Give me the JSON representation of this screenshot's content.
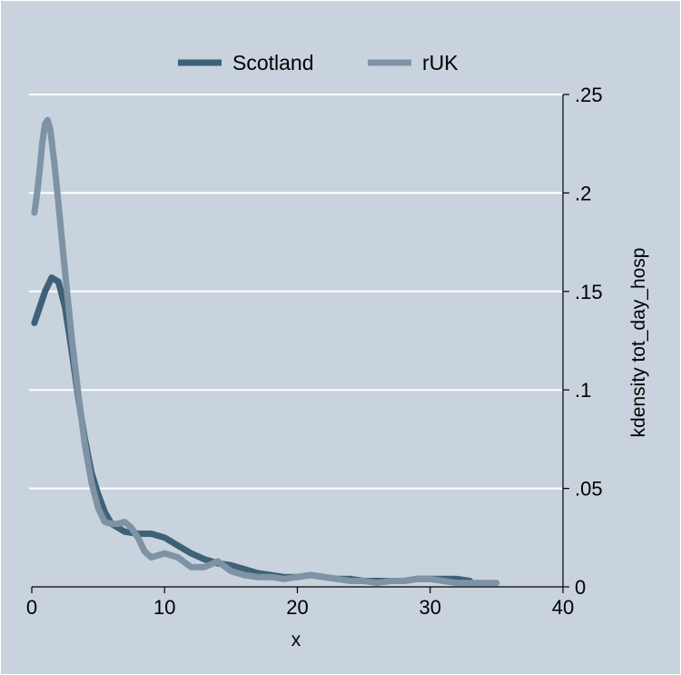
{
  "chart_data": {
    "type": "line",
    "title": "",
    "xlabel": "x",
    "ylabel": "kdensity tot_day_hosp",
    "xlim": [
      0,
      40
    ],
    "ylim": [
      0,
      0.25
    ],
    "y_axis_side": "right",
    "grid": true,
    "legend_position": "top-center",
    "x_ticks": [
      {
        "value": 0,
        "label": "0"
      },
      {
        "value": 10,
        "label": "10"
      },
      {
        "value": 20,
        "label": "20"
      },
      {
        "value": 30,
        "label": "30"
      },
      {
        "value": 40,
        "label": "40"
      }
    ],
    "y_ticks": [
      {
        "value": 0,
        "label": "0"
      },
      {
        "value": 0.05,
        "label": ".05"
      },
      {
        "value": 0.1,
        "label": ".1"
      },
      {
        "value": 0.15,
        "label": ".15"
      },
      {
        "value": 0.2,
        "label": ".2"
      },
      {
        "value": 0.25,
        "label": ".25"
      }
    ],
    "colors": {
      "outer_background": "#C9D3DD",
      "plot_background": "#C9D3DD",
      "grid": "#FFFFFF"
    },
    "series": [
      {
        "name": "Scotland",
        "color": "#3E6177",
        "points": [
          [
            0.2,
            0.134
          ],
          [
            0.5,
            0.14
          ],
          [
            1.0,
            0.15
          ],
          [
            1.5,
            0.157
          ],
          [
            2.0,
            0.155
          ],
          [
            2.5,
            0.142
          ],
          [
            3.0,
            0.12
          ],
          [
            3.5,
            0.096
          ],
          [
            4.0,
            0.075
          ],
          [
            4.5,
            0.058
          ],
          [
            5.0,
            0.047
          ],
          [
            5.5,
            0.038
          ],
          [
            6.0,
            0.032
          ],
          [
            7.0,
            0.028
          ],
          [
            8.0,
            0.027
          ],
          [
            9.0,
            0.027
          ],
          [
            10.0,
            0.025
          ],
          [
            11.0,
            0.021
          ],
          [
            12.0,
            0.017
          ],
          [
            13.0,
            0.014
          ],
          [
            14.0,
            0.012
          ],
          [
            15.0,
            0.011
          ],
          [
            16.0,
            0.009
          ],
          [
            17.0,
            0.007
          ],
          [
            18.0,
            0.006
          ],
          [
            19.0,
            0.005
          ],
          [
            20.0,
            0.005
          ],
          [
            21.0,
            0.006
          ],
          [
            22.0,
            0.005
          ],
          [
            23.0,
            0.004
          ],
          [
            24.0,
            0.004
          ],
          [
            25.0,
            0.003
          ],
          [
            26.0,
            0.003
          ],
          [
            27.0,
            0.003
          ],
          [
            28.0,
            0.003
          ],
          [
            29.0,
            0.004
          ],
          [
            30.0,
            0.004
          ],
          [
            31.0,
            0.004
          ],
          [
            32.0,
            0.004
          ],
          [
            33.0,
            0.003
          ]
        ]
      },
      {
        "name": "rUK",
        "color": "#7F93A6",
        "points": [
          [
            0.2,
            0.19
          ],
          [
            0.4,
            0.2
          ],
          [
            0.6,
            0.212
          ],
          [
            0.8,
            0.226
          ],
          [
            1.0,
            0.235
          ],
          [
            1.2,
            0.237
          ],
          [
            1.4,
            0.232
          ],
          [
            1.7,
            0.215
          ],
          [
            2.0,
            0.195
          ],
          [
            2.5,
            0.16
          ],
          [
            3.0,
            0.127
          ],
          [
            3.5,
            0.098
          ],
          [
            4.0,
            0.072
          ],
          [
            4.5,
            0.053
          ],
          [
            5.0,
            0.04
          ],
          [
            5.5,
            0.033
          ],
          [
            6.0,
            0.032
          ],
          [
            6.5,
            0.032
          ],
          [
            7.0,
            0.033
          ],
          [
            7.5,
            0.03
          ],
          [
            8.0,
            0.025
          ],
          [
            8.5,
            0.018
          ],
          [
            9.0,
            0.015
          ],
          [
            10.0,
            0.017
          ],
          [
            11.0,
            0.015
          ],
          [
            12.0,
            0.01
          ],
          [
            13.0,
            0.01
          ],
          [
            14.0,
            0.013
          ],
          [
            15.0,
            0.008
          ],
          [
            16.0,
            0.006
          ],
          [
            17.0,
            0.005
          ],
          [
            18.0,
            0.005
          ],
          [
            19.0,
            0.004
          ],
          [
            20.0,
            0.005
          ],
          [
            21.0,
            0.006
          ],
          [
            22.0,
            0.005
          ],
          [
            23.0,
            0.004
          ],
          [
            24.0,
            0.003
          ],
          [
            25.0,
            0.003
          ],
          [
            26.0,
            0.002
          ],
          [
            27.0,
            0.003
          ],
          [
            28.0,
            0.003
          ],
          [
            29.0,
            0.004
          ],
          [
            30.0,
            0.004
          ],
          [
            31.0,
            0.003
          ],
          [
            32.0,
            0.002
          ],
          [
            33.0,
            0.002
          ],
          [
            34.0,
            0.002
          ],
          [
            35.0,
            0.002
          ]
        ]
      }
    ]
  }
}
